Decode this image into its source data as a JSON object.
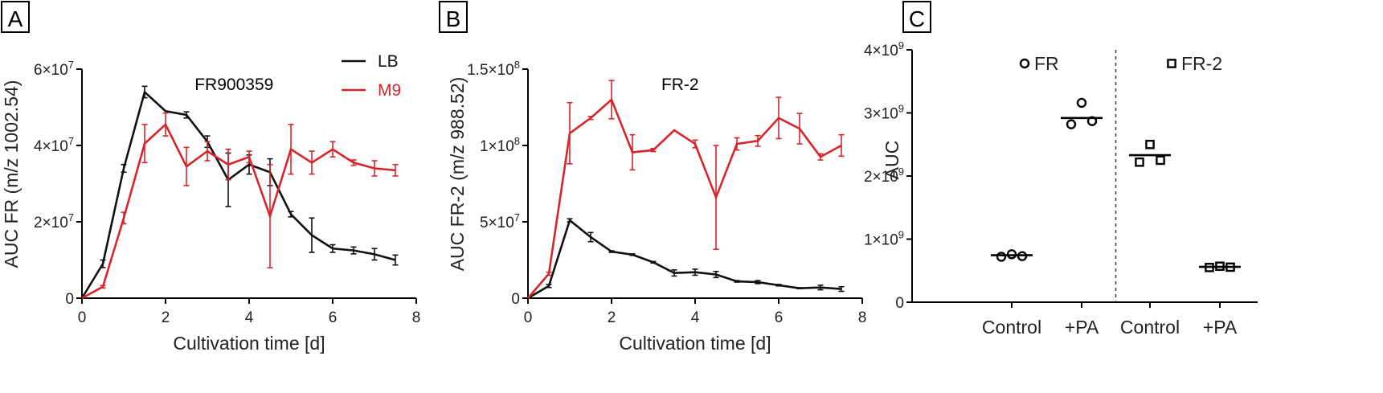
{
  "chart_data": [
    {
      "panel": "A",
      "type": "line",
      "title": "FR900359",
      "xlabel": "Cultivation time [d]",
      "ylabel": "AUC FR (m/z 1002.54)",
      "xlim": [
        0,
        8
      ],
      "ylim": [
        0,
        60000000
      ],
      "xticks": [
        "0",
        "2",
        "4",
        "6",
        "8"
      ],
      "yticks": [
        {
          "v": 0,
          "m": "0",
          "e": ""
        },
        {
          "v": 20000000,
          "m": "2×10",
          "e": "7"
        },
        {
          "v": 40000000,
          "m": "4×10",
          "e": "7"
        },
        {
          "v": 60000000,
          "m": "6×10",
          "e": "7"
        }
      ],
      "x": [
        0,
        0.5,
        1,
        1.5,
        2,
        2.5,
        3,
        3.5,
        4,
        4.5,
        5,
        5.5,
        6,
        6.5,
        7,
        7.5
      ],
      "series": [
        {
          "name": "LB",
          "color": "#111111",
          "values": [
            0,
            9000000,
            34000000,
            54000000,
            49000000,
            48000000,
            41000000,
            31000000,
            35000000,
            33000000,
            22000000,
            16500000,
            13000000,
            12500000,
            11500000,
            10000000
          ],
          "errors": [
            0,
            1000000,
            1000000,
            1500000,
            0,
            800000,
            1500000,
            7000000,
            2500000,
            3500000,
            700000,
            4500000,
            1000000,
            900000,
            1500000,
            1300000
          ]
        },
        {
          "name": "M9",
          "color": "#d6262b",
          "values": [
            0,
            3000000,
            21000000,
            40500000,
            45500000,
            34500000,
            38500000,
            35000000,
            37000000,
            21500000,
            39000000,
            35500000,
            39000000,
            35500000,
            34000000,
            33500000
          ],
          "errors": [
            0,
            300000,
            1500000,
            5000000,
            3000000,
            5000000,
            2500000,
            4000000,
            1500000,
            13500000,
            6500000,
            3000000,
            2000000,
            700000,
            2000000,
            1500000
          ]
        }
      ]
    },
    {
      "panel": "B",
      "type": "line",
      "title": "FR-2",
      "xlabel": "Cultivation time [d]",
      "ylabel": "AUC FR-2 (m/z 988.52)",
      "xlim": [
        0,
        8
      ],
      "ylim": [
        0,
        150000000
      ],
      "xticks": [
        "0",
        "2",
        "4",
        "6",
        "8"
      ],
      "yticks": [
        {
          "v": 0,
          "m": "0",
          "e": ""
        },
        {
          "v": 50000000,
          "m": "5×10",
          "e": "7"
        },
        {
          "v": 100000000,
          "m": "1×10",
          "e": "8"
        },
        {
          "v": 150000000,
          "m": "1.5×10",
          "e": "8"
        }
      ],
      "x": [
        0,
        0.5,
        1,
        1.5,
        2,
        2.5,
        3,
        3.5,
        4,
        4.5,
        5,
        5.5,
        6,
        6.5,
        7,
        7.5
      ],
      "series": [
        {
          "name": "LB",
          "color": "#111111",
          "values": [
            0,
            8000000,
            51000000,
            40000000,
            30500000,
            28500000,
            23500000,
            16500000,
            17000000,
            15500000,
            11000000,
            10500000,
            8500000,
            6500000,
            7000000,
            6000000
          ],
          "errors": [
            0,
            1000000,
            1000000,
            3000000,
            500000,
            500000,
            500000,
            2000000,
            2000000,
            2000000,
            500000,
            1000000,
            500000,
            300000,
            1500000,
            1500000
          ]
        },
        {
          "name": "M9",
          "color": "#d6262b",
          "values": [
            0,
            16000000,
            108000000,
            118000000,
            130000000,
            95500000,
            97000000,
            110000000,
            101000000,
            66000000,
            101000000,
            103000000,
            118000000,
            111000000,
            92500000,
            100000000
          ],
          "errors": [
            0,
            1000000,
            20000000,
            1000000,
            12500000,
            11500000,
            1000000,
            0,
            2500000,
            34000000,
            4000000,
            3500000,
            13500000,
            10000000,
            2000000,
            7000000
          ]
        }
      ]
    },
    {
      "panel": "C",
      "type": "scatter",
      "ylabel": "AUC",
      "ylim": [
        0,
        4000000000
      ],
      "categories": [
        "Control",
        "+PA",
        "Control",
        "+PA"
      ],
      "yticks": [
        {
          "v": 0,
          "m": "0",
          "e": ""
        },
        {
          "v": 1000000000,
          "m": "1×10",
          "e": "9"
        },
        {
          "v": 2000000000,
          "m": "2×10",
          "e": "9"
        },
        {
          "v": 3000000000,
          "m": "3×10",
          "e": "9"
        },
        {
          "v": 4000000000,
          "m": "4×10",
          "e": "9"
        }
      ],
      "series": [
        {
          "name": "FR",
          "marker": "circle",
          "groups": [
            {
              "category_index": 0,
              "values": [
                720000000,
                760000000,
                730000000
              ],
              "mean": 745000000
            },
            {
              "category_index": 1,
              "values": [
                2820000000,
                3160000000,
                2870000000
              ],
              "mean": 2920000000
            }
          ]
        },
        {
          "name": "FR-2",
          "marker": "square",
          "groups": [
            {
              "category_index": 2,
              "values": [
                2220000000,
                2500000000,
                2250000000
              ],
              "mean": 2330000000
            },
            {
              "category_index": 3,
              "values": [
                550000000,
                570000000,
                555000000
              ],
              "mean": 560000000
            }
          ]
        }
      ]
    }
  ],
  "panel_labels": [
    "A",
    "B",
    "C"
  ],
  "legend": [
    {
      "name": "LB",
      "color": "#111111"
    },
    {
      "name": "M9",
      "color": "#d6262b"
    }
  ],
  "legend_c": [
    {
      "name": "FR",
      "marker": "circle"
    },
    {
      "name": "FR-2",
      "marker": "square"
    }
  ]
}
